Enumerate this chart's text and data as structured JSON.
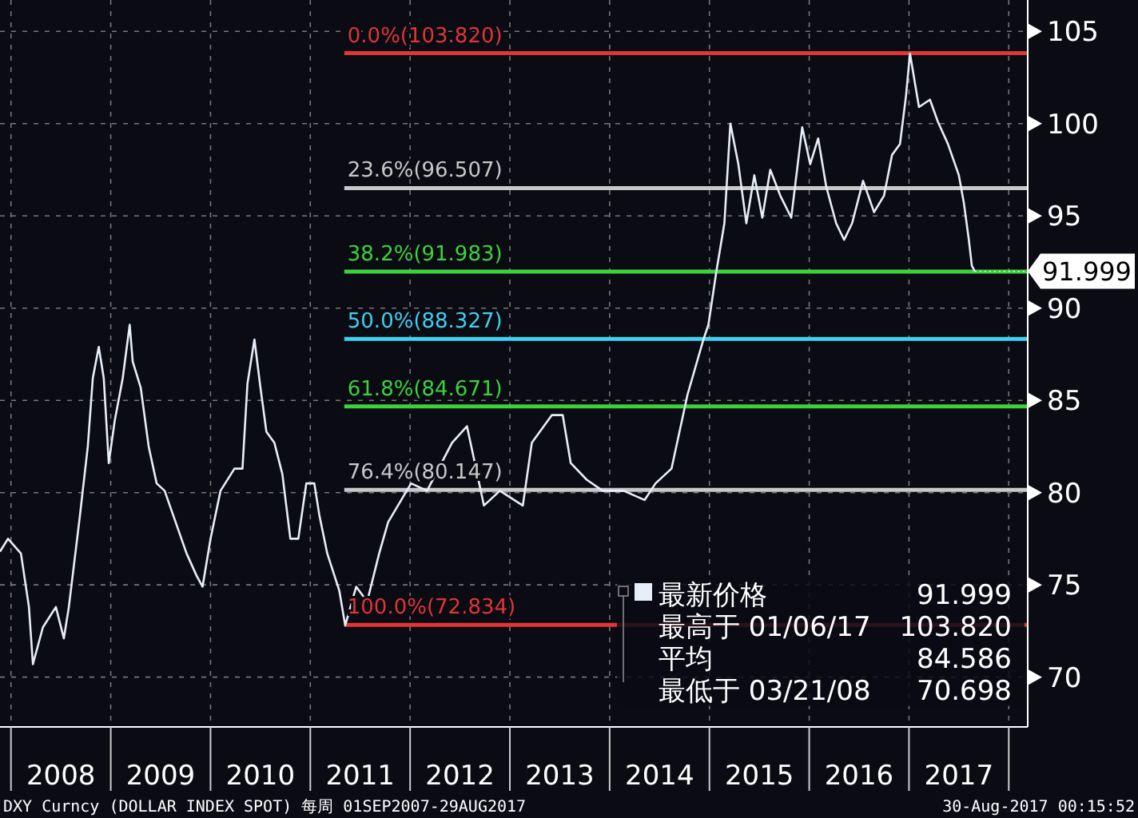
{
  "chart_data": {
    "type": "line",
    "x": [
      2007.89,
      2007.97,
      2008.1,
      2008.18,
      2008.22,
      2008.32,
      2008.45,
      2008.53,
      2008.58,
      2008.69,
      2008.77,
      2008.82,
      2008.88,
      2008.93,
      2008.98,
      2009.04,
      2009.12,
      2009.19,
      2009.22,
      2009.3,
      2009.38,
      2009.46,
      2009.54,
      2009.65,
      2009.76,
      2009.86,
      2009.92,
      2010.0,
      2010.1,
      2010.24,
      2010.32,
      2010.37,
      2010.44,
      2010.5,
      2010.56,
      2010.64,
      2010.72,
      2010.8,
      2010.88,
      2010.96,
      2011.04,
      2011.09,
      2011.17,
      2011.29,
      2011.35,
      2011.46,
      2011.57,
      2011.69,
      2011.78,
      2012.01,
      2012.17,
      2012.42,
      2012.57,
      2012.74,
      2012.9,
      2013.13,
      2013.22,
      2013.42,
      2013.53,
      2013.61,
      2013.77,
      2013.93,
      2014.14,
      2014.35,
      2014.46,
      2014.62,
      2014.78,
      2014.94,
      2014.99,
      2015.07,
      2015.15,
      2015.21,
      2015.29,
      2015.37,
      2015.45,
      2015.53,
      2015.61,
      2015.71,
      2015.82,
      2015.93,
      2016.01,
      2016.09,
      2016.17,
      2016.27,
      2016.35,
      2016.43,
      2016.54,
      2016.65,
      2016.75,
      2016.83,
      2016.91,
      2016.97,
      2017.01,
      2017.1,
      2017.21,
      2017.29,
      2017.39,
      2017.5,
      2017.55,
      2017.6,
      2017.63,
      2017.66
    ],
    "series": [
      {
        "name": "最新价格",
        "color": "#e8eef8",
        "values": [
          76.8,
          77.5,
          76.7,
          73.8,
          70.7,
          72.7,
          73.8,
          72.1,
          73.8,
          78.7,
          82.5,
          86.2,
          87.9,
          86.2,
          81.6,
          83.9,
          86.2,
          89.1,
          87.1,
          85.7,
          82.5,
          80.5,
          80.1,
          78.4,
          76.7,
          75.5,
          74.9,
          77.5,
          80.1,
          81.3,
          81.3,
          85.9,
          88.3,
          85.7,
          83.3,
          82.7,
          81.0,
          77.5,
          77.5,
          80.5,
          80.5,
          78.8,
          76.7,
          74.7,
          72.8,
          74.9,
          74.1,
          76.7,
          78.4,
          80.5,
          80.1,
          82.7,
          83.6,
          79.3,
          80.1,
          79.3,
          82.7,
          84.2,
          84.2,
          81.6,
          80.7,
          80.1,
          80.1,
          79.6,
          80.5,
          81.3,
          85.3,
          88.3,
          89.1,
          92.0,
          94.6,
          100.0,
          97.8,
          94.6,
          97.2,
          94.9,
          97.5,
          96.1,
          94.9,
          99.8,
          97.8,
          99.2,
          96.6,
          94.6,
          93.7,
          94.6,
          96.9,
          95.2,
          96.1,
          98.3,
          98.9,
          101.5,
          103.8,
          100.9,
          101.3,
          100.1,
          98.9,
          97.2,
          95.7,
          93.7,
          92.3,
          92.0
        ]
      }
    ],
    "xlim": [
      2007.89,
      2018.19
    ],
    "xticks": [
      {
        "value": 2008.5,
        "label": "2008"
      },
      {
        "value": 2009.5,
        "label": "2009"
      },
      {
        "value": 2010.5,
        "label": "2010"
      },
      {
        "value": 2011.5,
        "label": "2011"
      },
      {
        "value": 2012.5,
        "label": "2012"
      },
      {
        "value": 2013.5,
        "label": "2013"
      },
      {
        "value": 2014.5,
        "label": "2014"
      },
      {
        "value": 2015.5,
        "label": "2015"
      },
      {
        "value": 2016.5,
        "label": "2016"
      },
      {
        "value": 2017.5,
        "label": "2017"
      }
    ],
    "ylim": [
      67.3,
      106.7
    ],
    "yticks": [
      70,
      75,
      80,
      85,
      90,
      95,
      100,
      105
    ],
    "grid": true,
    "legend": "bottom right",
    "ref_lines": [
      {
        "axis": "y",
        "value": 103.82,
        "label": "0.0%(103.820)",
        "color": "#e03535"
      },
      {
        "axis": "y",
        "value": 96.507,
        "label": "23.6%(96.507)",
        "color": "#c8c8c8"
      },
      {
        "axis": "y",
        "value": 91.983,
        "label": "38.2%(91.983)",
        "color": "#3cd23c"
      },
      {
        "axis": "y",
        "value": 88.327,
        "label": "50.0%(88.327)",
        "color": "#40d0f0"
      },
      {
        "axis": "y",
        "value": 84.671,
        "label": "61.8%(84.671)",
        "color": "#3cd23c"
      },
      {
        "axis": "y",
        "value": 80.147,
        "label": "76.4%(80.147)",
        "color": "#c8c8c8"
      },
      {
        "axis": "y",
        "value": 72.834,
        "label": "100.0%(72.834)",
        "color": "#e03535"
      }
    ],
    "annotations": [
      {
        "text": "91.999",
        "x": 2017.66,
        "y": 91.999
      },
      "91.999",
      "最高于 01/06/17 103.820",
      "平均 84.586",
      "最低于 03/21/08 70.698",
      "DXY Curncy (DOLLAR INDEX SPOT)  每周 01SEP2007-29AUG2017",
      "30-Aug-2017 00:15:52"
    ]
  }
}
